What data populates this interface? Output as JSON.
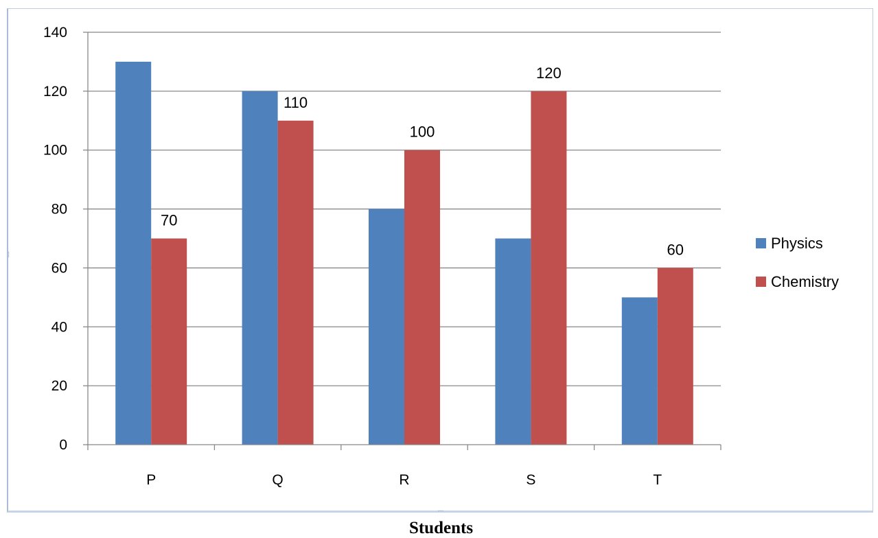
{
  "chart_data": {
    "type": "bar",
    "categories": [
      "P",
      "Q",
      "R",
      "S",
      "T"
    ],
    "series": [
      {
        "name": "Physics",
        "color": "#4f81bd",
        "values": [
          130,
          120,
          80,
          70,
          50
        ]
      },
      {
        "name": "Chemistry",
        "color": "#c0504d",
        "values": [
          70,
          110,
          100,
          120,
          60
        ]
      }
    ],
    "data_labels": {
      "series": "Chemistry",
      "values": [
        "70",
        "110",
        "100",
        "120",
        "60"
      ]
    },
    "y_ticks": [
      "0",
      "20",
      "40",
      "60",
      "80",
      "100",
      "120",
      "140"
    ],
    "ylim": [
      0,
      140
    ],
    "xlabel": "Students",
    "ylabel": "",
    "title": "",
    "grid": true,
    "legend": "right"
  }
}
